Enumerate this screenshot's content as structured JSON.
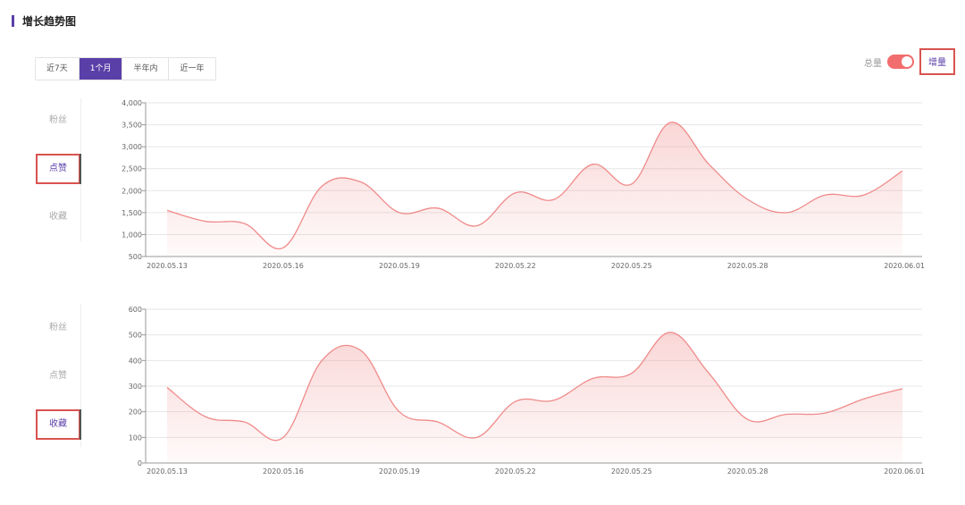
{
  "section_title": "增长趋势图",
  "range_tabs": [
    "近7天",
    "1个月",
    "半年内",
    "近一年"
  ],
  "active_tab": 1,
  "toggle": {
    "left_label": "总量",
    "right_label": "增量",
    "on": true
  },
  "accent_color": "#5b3fa8",
  "line_color": "#f08a8a",
  "highlight_color": "#d9534f",
  "side_nav_top": {
    "items": [
      "粉丝",
      "点赞",
      "收藏"
    ],
    "active": 1
  },
  "side_nav_bottom": {
    "items": [
      "粉丝",
      "点赞",
      "收藏"
    ],
    "active": 2
  },
  "chart_data": [
    {
      "type": "area",
      "metric": "点赞",
      "x_ticks": [
        "2020.05.13",
        "2020.05.16",
        "2020.05.19",
        "2020.05.22",
        "2020.05.25",
        "2020.05.28",
        "2020.06.01"
      ],
      "x": [
        "2020.05.13",
        "2020.05.14",
        "2020.05.15",
        "2020.05.16",
        "2020.05.17",
        "2020.05.18",
        "2020.05.19",
        "2020.05.20",
        "2020.05.21",
        "2020.05.22",
        "2020.05.23",
        "2020.05.24",
        "2020.05.25",
        "2020.05.26",
        "2020.05.27",
        "2020.05.28",
        "2020.05.29",
        "2020.05.30",
        "2020.05.31",
        "2020.06.01"
      ],
      "values": [
        1550,
        1300,
        1250,
        700,
        2100,
        2200,
        1500,
        1600,
        1200,
        1950,
        1800,
        2600,
        2150,
        3550,
        2600,
        1800,
        1500,
        1900,
        1900,
        2450
      ],
      "ylim": [
        500,
        4000
      ],
      "y_ticks": [
        "500",
        "1,000",
        "1,500",
        "2,000",
        "2,500",
        "3,000",
        "3,500",
        "4,000"
      ]
    },
    {
      "type": "area",
      "metric": "收藏",
      "x_ticks": [
        "2020.05.13",
        "2020.05.16",
        "2020.05.19",
        "2020.05.22",
        "2020.05.25",
        "2020.05.28",
        "2020.06.01"
      ],
      "x": [
        "2020.05.13",
        "2020.05.14",
        "2020.05.15",
        "2020.05.16",
        "2020.05.17",
        "2020.05.18",
        "2020.05.19",
        "2020.05.20",
        "2020.05.21",
        "2020.05.22",
        "2020.05.23",
        "2020.05.24",
        "2020.05.25",
        "2020.05.26",
        "2020.05.27",
        "2020.05.28",
        "2020.05.29",
        "2020.05.30",
        "2020.05.31",
        "2020.06.01"
      ],
      "values": [
        295,
        180,
        160,
        100,
        400,
        440,
        200,
        160,
        100,
        240,
        245,
        330,
        350,
        510,
        350,
        170,
        190,
        195,
        250,
        290
      ],
      "ylim": [
        0,
        600
      ],
      "y_ticks": [
        "0",
        "100",
        "200",
        "300",
        "400",
        "500",
        "600"
      ]
    }
  ]
}
